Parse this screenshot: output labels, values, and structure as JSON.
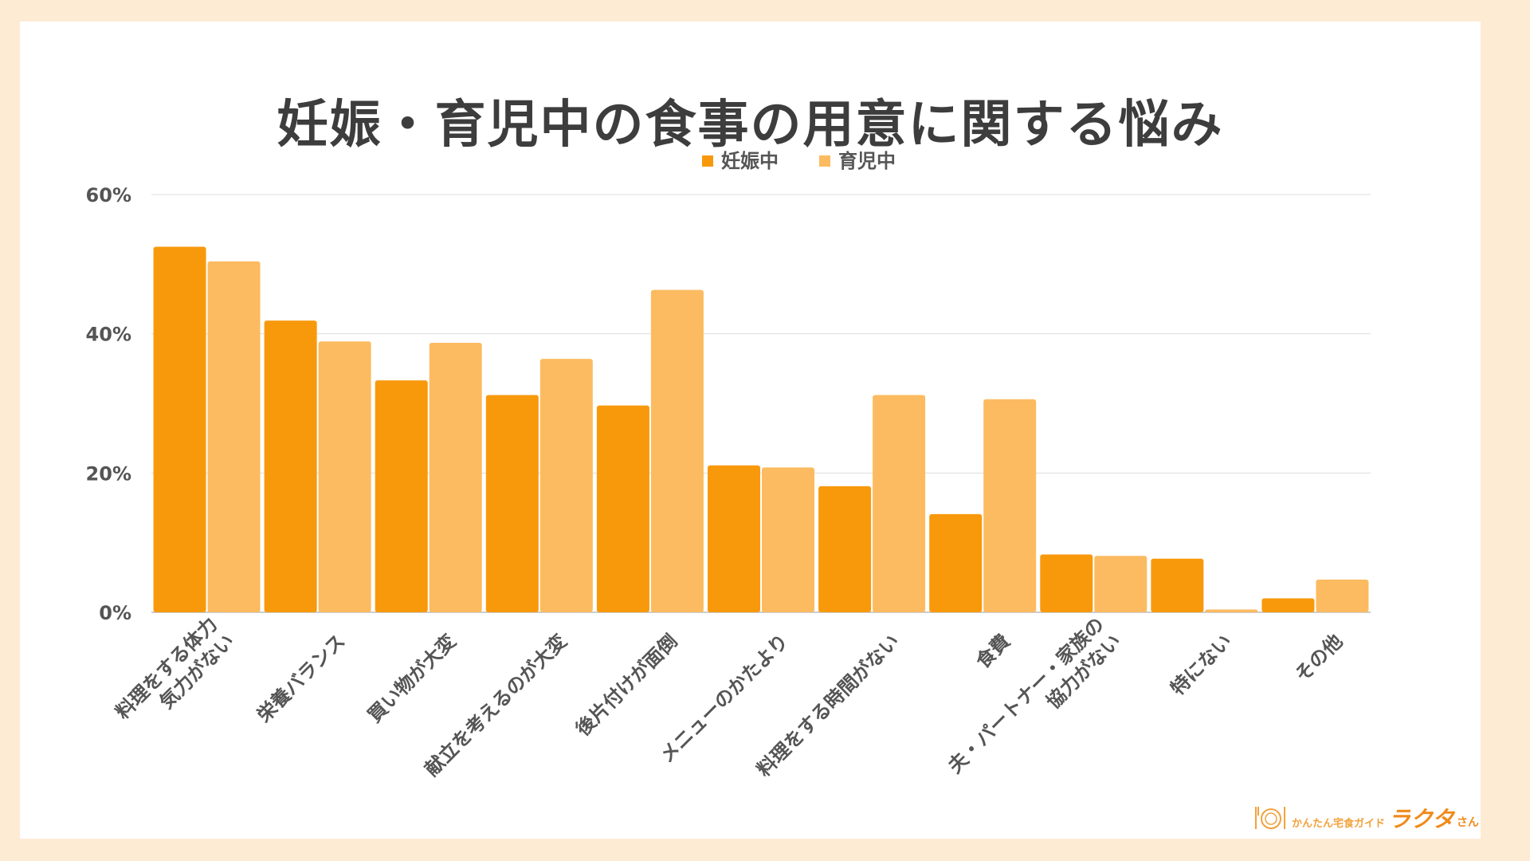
{
  "title": "妊娠・育児中の食事の用意に関する悩み",
  "colors": {
    "pregnancy": "#f8990c",
    "childcare": "#fcbb60",
    "grid": "#dddddd",
    "background": "#fdebd3"
  },
  "logo": {
    "sub": "かんたん宅食ガイド",
    "main": "ラクタ",
    "tail": "さん",
    "icon": "plate-cutlery-icon"
  },
  "chart_data": {
    "type": "bar",
    "title": "妊娠・育児中の食事の用意に関する悩み",
    "categories": [
      [
        "料理をする体力",
        "気力がない"
      ],
      [
        "栄養バランス"
      ],
      [
        "買い物が大変"
      ],
      [
        "献立を考えるのが大変"
      ],
      [
        "後片付けが面倒"
      ],
      [
        "メニューのかたより"
      ],
      [
        "料理をする時間がない"
      ],
      [
        "食費"
      ],
      [
        "夫・パートナー・家族の",
        "協力がない"
      ],
      [
        "特にない"
      ],
      [
        "その他"
      ]
    ],
    "series": [
      {
        "name": "妊娠中",
        "values": [
          52.5,
          41.9,
          33.3,
          31.2,
          29.7,
          21.1,
          18.1,
          14.1,
          8.3,
          7.7,
          2.0
        ]
      },
      {
        "name": "育児中",
        "values": [
          50.4,
          38.9,
          38.7,
          36.4,
          46.3,
          20.8,
          31.2,
          30.6,
          8.1,
          0.4,
          4.7
        ]
      }
    ],
    "yticks": [
      "0%",
      "20%",
      "40%",
      "60%"
    ],
    "ylim": [
      0,
      60
    ],
    "grid": true,
    "legend_position": "top-center",
    "xlabel": "",
    "ylabel": ""
  }
}
